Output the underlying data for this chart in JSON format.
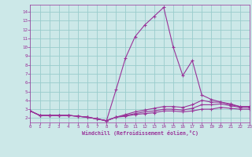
{
  "xlabel": "Windchill (Refroidissement éolien,°C)",
  "xlim": [
    0,
    23
  ],
  "ylim": [
    1.5,
    14.8
  ],
  "yticks": [
    2,
    3,
    4,
    5,
    6,
    7,
    8,
    9,
    10,
    11,
    12,
    13,
    14
  ],
  "xticks": [
    0,
    1,
    2,
    3,
    4,
    5,
    6,
    7,
    8,
    9,
    10,
    11,
    12,
    13,
    14,
    15,
    16,
    17,
    18,
    19,
    20,
    21,
    22,
    23
  ],
  "bg_color": "#cce8e8",
  "line_color": "#993399",
  "grid_color": "#99cccc",
  "curves": [
    {
      "x": [
        0,
        1,
        2,
        3,
        4,
        5,
        6,
        7,
        8,
        9,
        10,
        11,
        12,
        13,
        14,
        15,
        16,
        17,
        18,
        19,
        20,
        21,
        22,
        23
      ],
      "y": [
        2.8,
        2.3,
        2.3,
        2.3,
        2.3,
        2.2,
        2.1,
        1.9,
        1.7,
        5.2,
        8.8,
        11.2,
        12.5,
        13.5,
        14.5,
        10.0,
        6.8,
        8.5,
        4.6,
        4.1,
        3.8,
        3.5,
        3.3,
        3.3
      ]
    },
    {
      "x": [
        0,
        1,
        2,
        3,
        4,
        5,
        6,
        7,
        8,
        9,
        10,
        11,
        12,
        13,
        14,
        15,
        16,
        17,
        18,
        19,
        20,
        21,
        22,
        23
      ],
      "y": [
        2.8,
        2.3,
        2.3,
        2.3,
        2.3,
        2.2,
        2.1,
        1.9,
        1.7,
        2.1,
        2.4,
        2.7,
        2.9,
        3.1,
        3.3,
        3.3,
        3.2,
        3.5,
        4.0,
        3.8,
        3.8,
        3.6,
        3.3,
        3.3
      ]
    },
    {
      "x": [
        0,
        1,
        2,
        3,
        4,
        5,
        6,
        7,
        8,
        9,
        10,
        11,
        12,
        13,
        14,
        15,
        16,
        17,
        18,
        19,
        20,
        21,
        22,
        23
      ],
      "y": [
        2.8,
        2.3,
        2.3,
        2.3,
        2.3,
        2.2,
        2.1,
        1.9,
        1.7,
        2.1,
        2.3,
        2.5,
        2.7,
        2.8,
        3.0,
        3.0,
        2.9,
        3.1,
        3.5,
        3.5,
        3.6,
        3.4,
        3.2,
        3.2
      ]
    },
    {
      "x": [
        0,
        1,
        2,
        3,
        4,
        5,
        6,
        7,
        8,
        9,
        10,
        11,
        12,
        13,
        14,
        15,
        16,
        17,
        18,
        19,
        20,
        21,
        22,
        23
      ],
      "y": [
        2.8,
        2.3,
        2.3,
        2.3,
        2.3,
        2.2,
        2.1,
        1.9,
        1.7,
        2.1,
        2.2,
        2.4,
        2.5,
        2.6,
        2.8,
        2.8,
        2.7,
        2.8,
        3.0,
        3.0,
        3.2,
        3.1,
        3.0,
        3.0
      ]
    }
  ]
}
